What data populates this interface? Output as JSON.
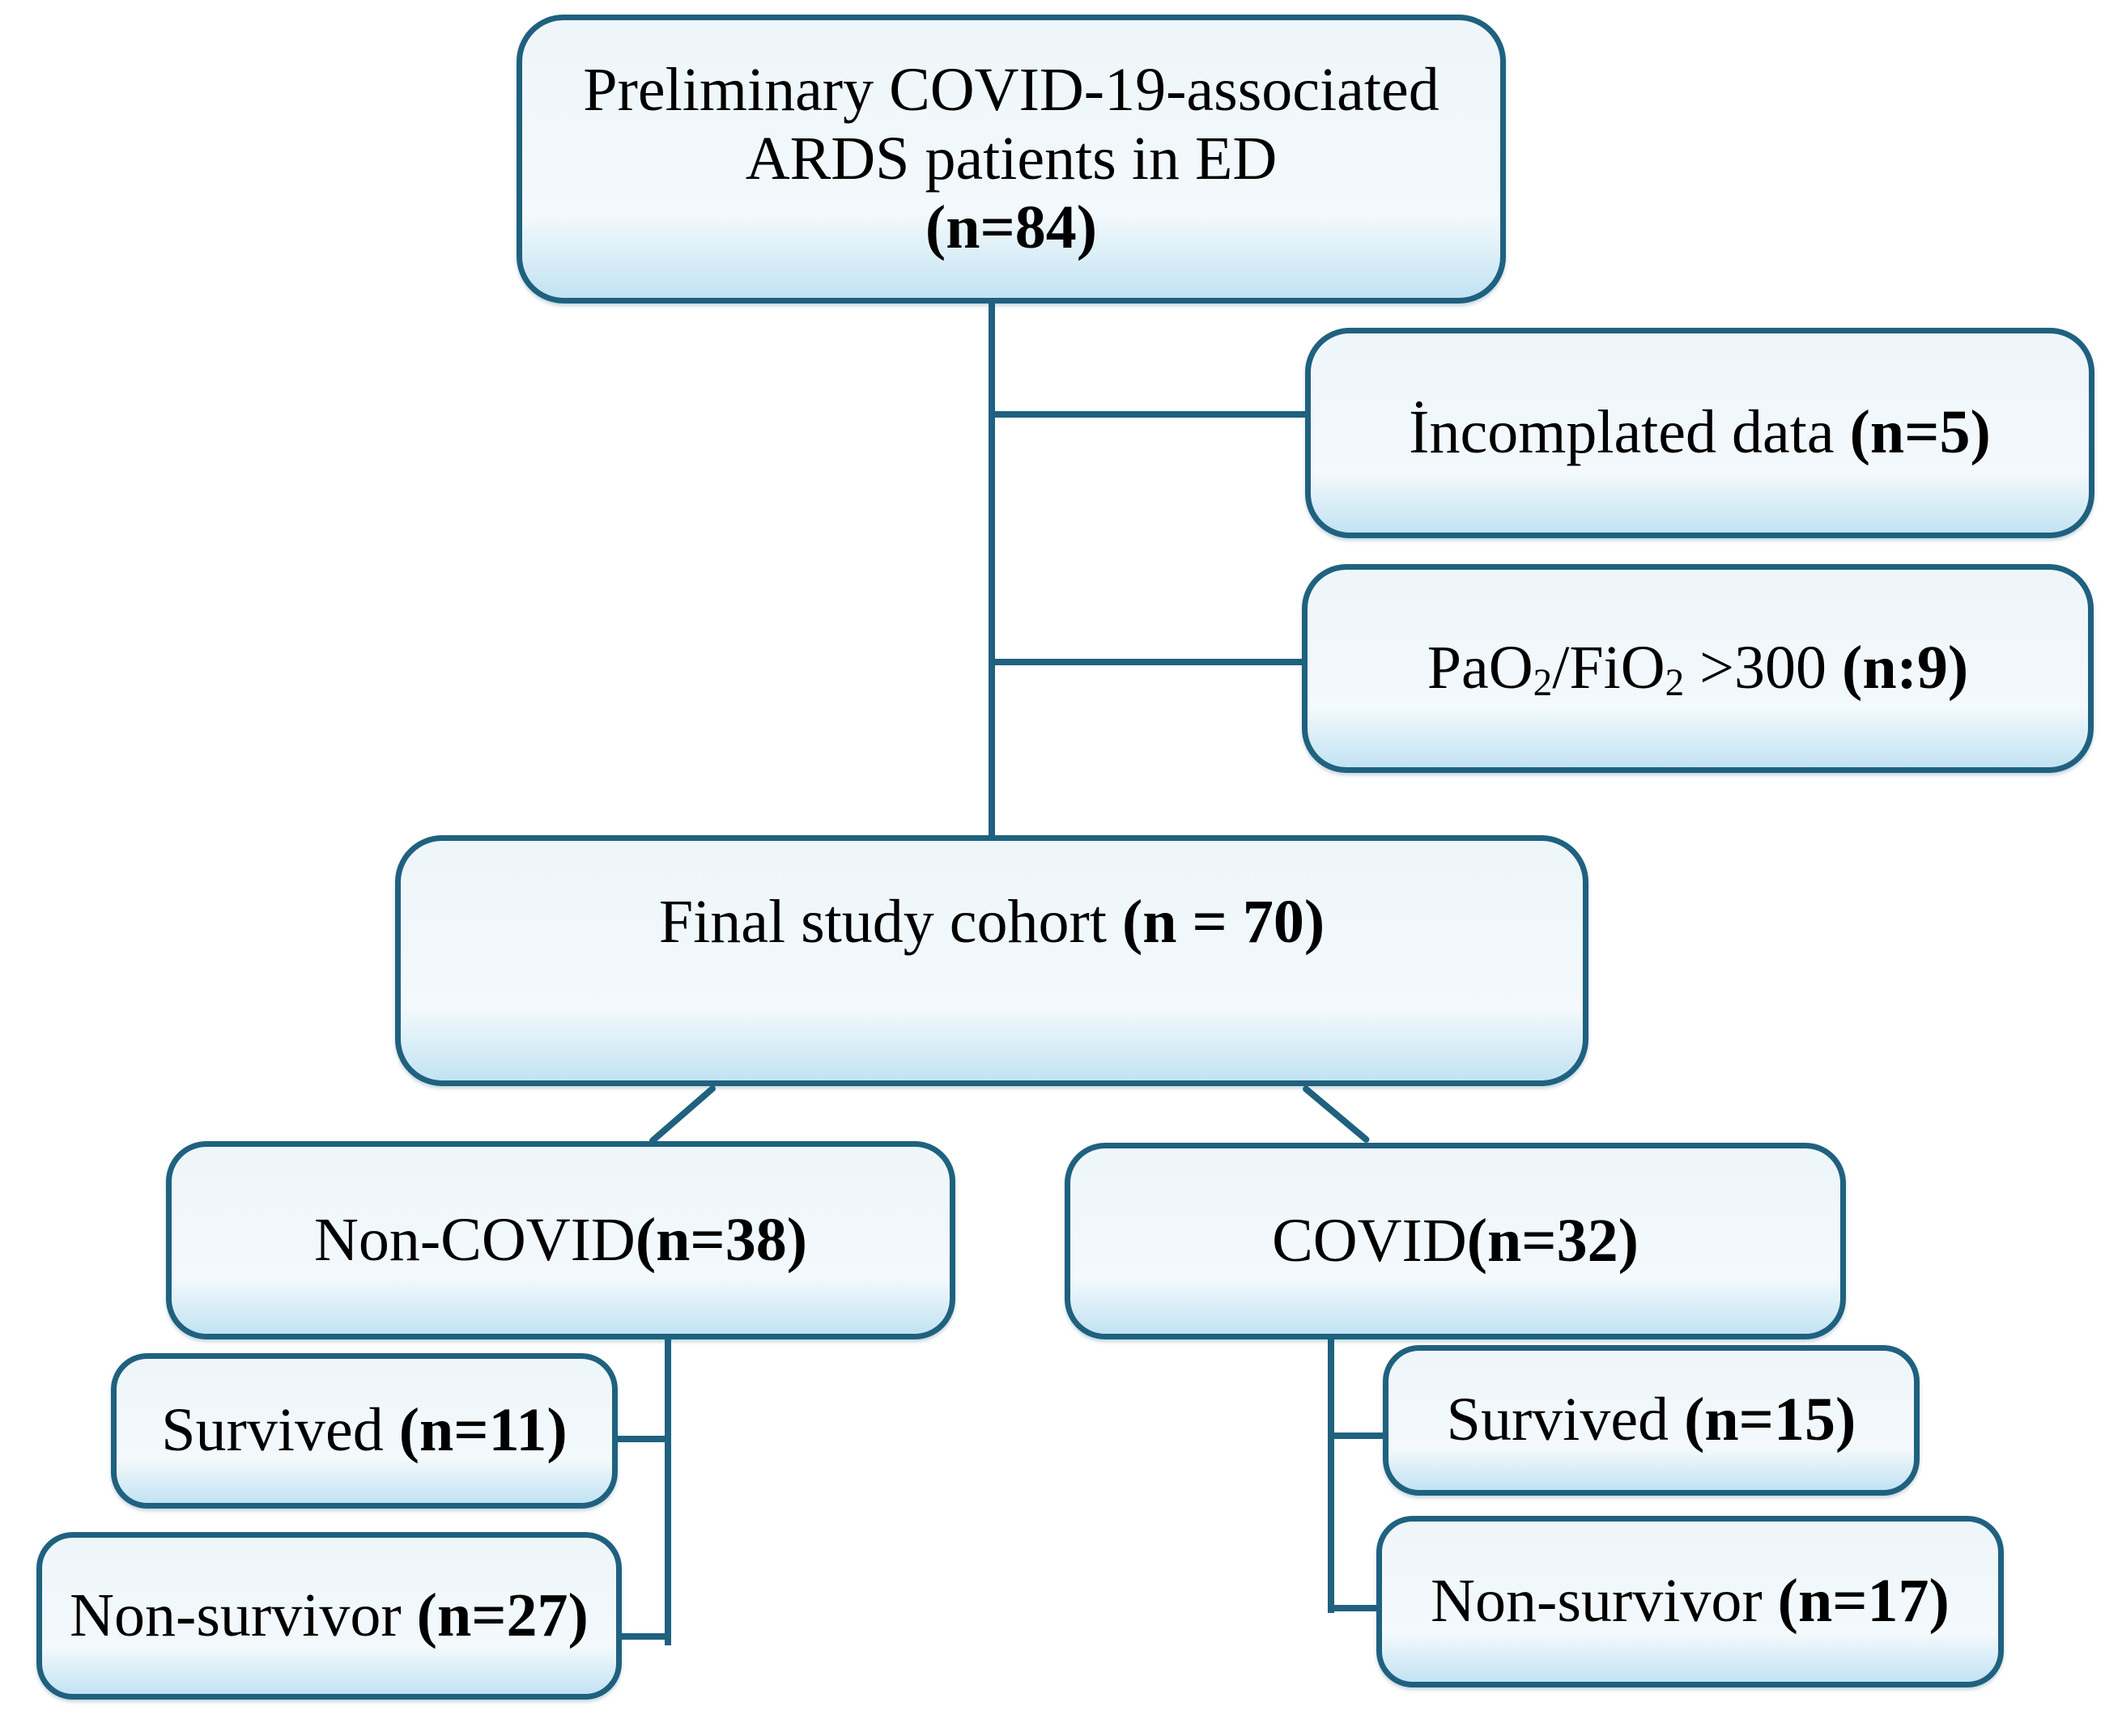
{
  "theme": {
    "line_color": "#1f617f",
    "box_fill_top": "#eef6fa",
    "box_fill_mid": "#f3f9fc",
    "box_fill_bottom": "#c2e3f3",
    "text_color": "#000000",
    "background": "#ffffff"
  },
  "boxes": {
    "preliminary": {
      "line1": "Preliminary COVID-19-associated",
      "line2": "ARDS patients in ED",
      "count": "(n=84)"
    },
    "incomplete_data": {
      "label": "İncomplated data ",
      "count": "(n=5)"
    },
    "pf_ratio": {
      "part1": "PaO",
      "sub1": "2",
      "part2": "/FiO",
      "sub2": "2",
      "part3": " >300 ",
      "count": "(n:9)"
    },
    "final_cohort": {
      "label": "Final study cohort ",
      "count": "(n = 70)"
    },
    "non_covid": {
      "label": "Non-COVID",
      "count": "(n=38)"
    },
    "covid": {
      "label": "COVID",
      "count": "(n=32)"
    },
    "non_covid_survived": {
      "label": "Survived ",
      "count": "(n=11)"
    },
    "non_covid_non_survivor": {
      "label": "Non-survivor ",
      "count": "(n=27)"
    },
    "covid_survived": {
      "label": "Survived ",
      "count": "(n=15)"
    },
    "covid_non_survivor": {
      "label": "Non-survivor ",
      "count": "(n=17)"
    }
  }
}
